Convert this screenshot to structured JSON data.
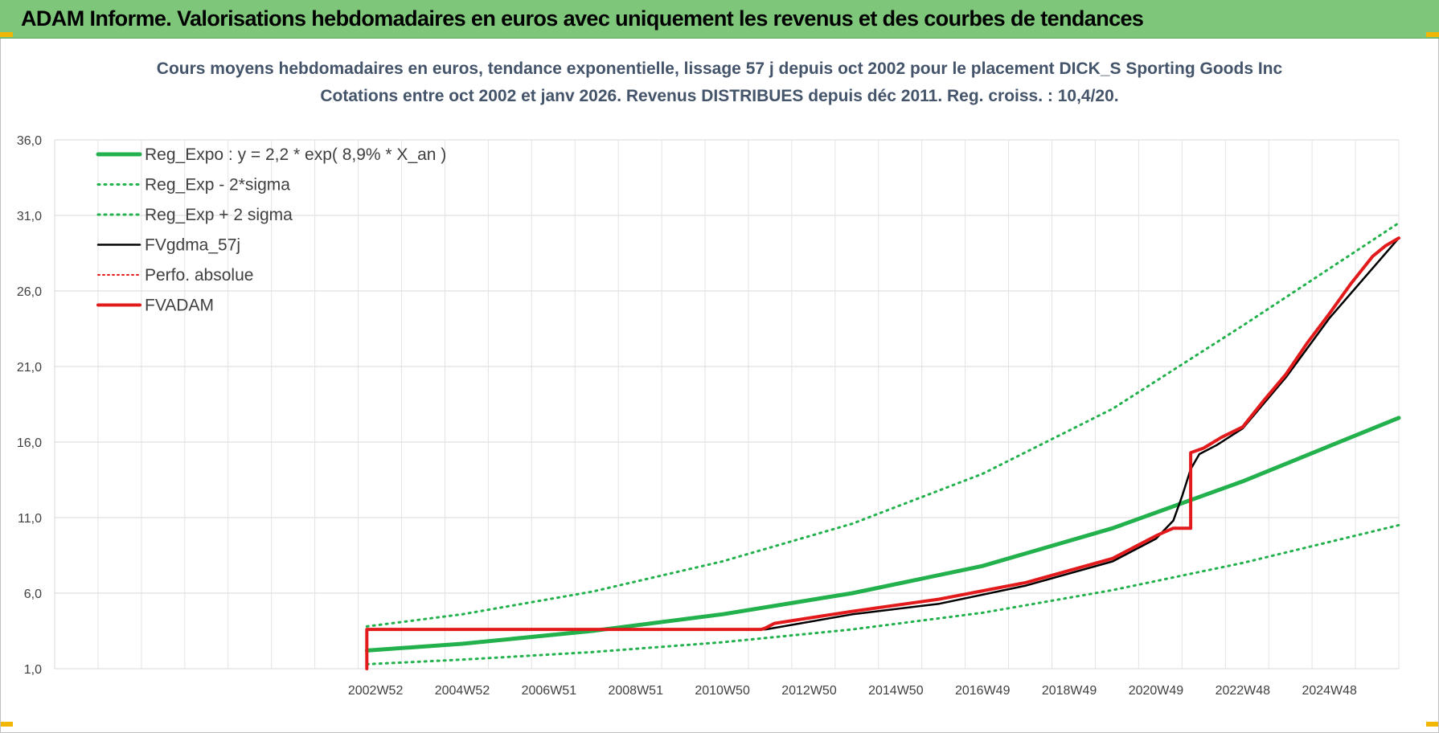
{
  "header": {
    "title": "ADAM Informe. Valorisations hebdomadaires en euros avec uniquement les revenus et des courbes de tendances"
  },
  "colors": {
    "header_bg": "#7dc67a",
    "reg_green": "#22b14c",
    "fv_black": "#000000",
    "adam_red": "#e31a1c",
    "grid": "#d9d9d9"
  },
  "chart_data": {
    "type": "line",
    "title": [
      "Cours moyens hebdomadaires en euros, tendance exponentielle, lissage 57 j depuis oct 2002 pour le placement DICK_S Sporting Goods Inc",
      "Cotations entre oct 2002 et janv 2026. Revenus DISTRIBUES depuis déc 2011. Reg. croiss. : 10,4/20."
    ],
    "xlabel": "",
    "ylabel": "",
    "ylim": [
      1.0,
      36.0
    ],
    "yticks": [
      "1,0",
      "6,0",
      "11,0",
      "16,0",
      "21,0",
      "26,0",
      "31,0",
      "36,0"
    ],
    "xlim": [
      1995.6,
      2026.6
    ],
    "xticks": [
      {
        "label": "2002W52",
        "x": 2003.0
      },
      {
        "label": "2004W52",
        "x": 2005.0
      },
      {
        "label": "2006W51",
        "x": 2007.0
      },
      {
        "label": "2008W51",
        "x": 2009.0
      },
      {
        "label": "2010W50",
        "x": 2011.0
      },
      {
        "label": "2012W50",
        "x": 2013.0
      },
      {
        "label": "2014W50",
        "x": 2015.0
      },
      {
        "label": "2016W49",
        "x": 2017.0
      },
      {
        "label": "2018W49",
        "x": 2019.0
      },
      {
        "label": "2020W49",
        "x": 2021.0
      },
      {
        "label": "2022W48",
        "x": 2023.0
      },
      {
        "label": "2024W48",
        "x": 2025.0
      }
    ],
    "legend": [
      {
        "label": "Reg_Expo : y = 2,2 * exp( 8,9% *  X_an )",
        "color": "#22b14c",
        "style": "solid",
        "width": 5
      },
      {
        "label": "Reg_Exp - 2*sigma",
        "color": "#22b14c",
        "style": "dotted",
        "width": 3
      },
      {
        "label": "Reg_Exp + 2 sigma",
        "color": "#22b14c",
        "style": "dotted",
        "width": 3
      },
      {
        "label": "FVgdma_57j",
        "color": "#000000",
        "style": "solid",
        "width": 2.5
      },
      {
        "label": "Perfo. absolue",
        "color": "#e31a1c",
        "style": "dotted",
        "width": 2
      },
      {
        "label": "FVADAM",
        "color": "#e31a1c",
        "style": "solid",
        "width": 4
      }
    ],
    "legend_position": "top-left",
    "series": [
      {
        "name": "Reg_Expo : y = 2,2 * exp( 8,9% *  X_an )",
        "x": [
          2002.8,
          2005.0,
          2008.0,
          2011.0,
          2014.0,
          2017.0,
          2020.0,
          2023.0,
          2026.6
        ],
        "y": [
          2.2,
          2.65,
          3.5,
          4.6,
          6.0,
          7.8,
          10.3,
          13.4,
          17.6
        ]
      },
      {
        "name": "Reg_Exp - 2*sigma",
        "x": [
          2002.8,
          2005.0,
          2008.0,
          2011.0,
          2014.0,
          2017.0,
          2020.0,
          2023.0,
          2026.6
        ],
        "y": [
          1.3,
          1.6,
          2.1,
          2.75,
          3.6,
          4.7,
          6.2,
          8.0,
          10.5
        ]
      },
      {
        "name": "Reg_Exp + 2 sigma",
        "x": [
          2002.8,
          2005.0,
          2008.0,
          2011.0,
          2014.0,
          2017.0,
          2020.0,
          2023.0,
          2026.6
        ],
        "y": [
          3.8,
          4.6,
          6.1,
          8.1,
          10.6,
          13.9,
          18.2,
          23.7,
          30.5
        ]
      },
      {
        "name": "FVgdma_57j",
        "x": [
          2002.8,
          2012.0,
          2014.0,
          2016.0,
          2018.0,
          2020.0,
          2021.0,
          2021.4,
          2021.6,
          2021.8,
          2022.0,
          2022.4,
          2023.0,
          2024.0,
          2025.0,
          2026.6
        ],
        "y": [
          3.6,
          3.6,
          4.6,
          5.3,
          6.5,
          8.1,
          9.6,
          10.8,
          12.4,
          14.2,
          15.2,
          15.8,
          16.9,
          20.3,
          24.2,
          29.5
        ]
      },
      {
        "name": "Perfo. absolue",
        "x": [
          2002.8,
          2012.0,
          2014.0,
          2016.0,
          2018.0,
          2020.0,
          2021.0,
          2021.4,
          2021.6,
          2021.8,
          2022.0,
          2022.4,
          2023.0,
          2024.0,
          2025.0,
          2026.6
        ],
        "y": [
          3.6,
          3.6,
          4.6,
          5.3,
          6.5,
          8.1,
          9.6,
          10.8,
          12.4,
          14.2,
          15.2,
          15.8,
          16.9,
          20.3,
          24.2,
          29.5
        ]
      },
      {
        "name": "FVADAM",
        "x": [
          2002.8,
          2002.8,
          2011.9,
          2012.0,
          2012.2,
          2014.0,
          2016.0,
          2018.0,
          2020.0,
          2021.0,
          2021.4,
          2021.8,
          2021.8,
          2022.1,
          2022.5,
          2023.0,
          2023.5,
          2024.0,
          2024.5,
          2025.0,
          2025.5,
          2026.0,
          2026.3,
          2026.6
        ],
        "y": [
          1.0,
          3.6,
          3.6,
          3.7,
          4.0,
          4.8,
          5.6,
          6.7,
          8.3,
          9.8,
          10.3,
          10.3,
          15.3,
          15.6,
          16.3,
          17.0,
          18.8,
          20.5,
          22.6,
          24.5,
          26.5,
          28.3,
          29.0,
          29.5
        ]
      }
    ]
  }
}
